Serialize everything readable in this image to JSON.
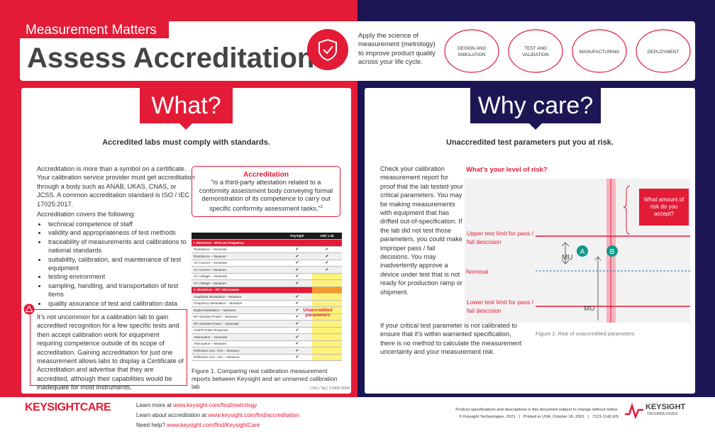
{
  "header": {
    "tag": "Measurement Matters",
    "title": "Assess Accreditation",
    "blurb": "Apply the science of measurement (metrology) to improve product quality across your life cycle.",
    "stages": [
      "DESIGN AND SIMULATION",
      "TEST AND VALIDATION",
      "MANUFACTURING",
      "DEPLOYMENT"
    ]
  },
  "what": {
    "heading": "What?",
    "subheading": "Accredited labs must comply with standards.",
    "intro": "Accreditation is more than a symbol on a certificate. Your calibration service provider must get accreditation through a body such as ANAB, UKAS, CNAS, or JCSS. A common accreditation standard is ISO / IEC 17025:2017.",
    "list_intro": "Accreditation covers the following:",
    "bullets": [
      "technical competence of staff",
      "validity and appropriateness of test methods",
      "traceability of measurements and calibrations to national standards",
      "suitability, calibration, and maintenance of test equipment",
      "testing environment",
      "sampling, handling, and transportation of test items",
      "quality assurance of test and calibration data"
    ],
    "definition": {
      "title": "Accreditation",
      "text": "“is a third-party attestation related to a conformity assessment body conveying formal demonstration of its competence to carry out specific conformity assessment tasks.”",
      "mark": "1"
    },
    "warning": "It’s not uncommon for a calibration lab to gain accredited recognition for a few specific tests and then accept calibration work for equipment requiring competence outside of its scope of accreditation. Gaining accreditation for just one measurement allows labs to display a Certificate of Accreditation and advertise that they are accredited, although their capabilities would be inadequate for most instruments.",
    "table": {
      "columns": [
        "Keysight",
        "ABC Lab"
      ],
      "rows": [
        {
          "section": "I. Electrical – DC/Low Frequency"
        },
        [
          "Resistance – Generate",
          "✔",
          "✔"
        ],
        [
          "Resistance – Measure",
          "✔",
          "✔"
        ],
        [
          "AC Current – Generate",
          "✔",
          "✔"
        ],
        [
          "AC Current – Measure",
          "✔",
          "✔"
        ],
        [
          "AC Voltage – Generate",
          "✔"
        ],
        [
          "AC Voltage – Measure",
          "✔"
        ],
        {
          "section": "II. Electrical – RF / Microwave"
        },
        [
          "Amplitude Modulation – Measure",
          "✔"
        ],
        [
          "Frequency Modulation – Measure",
          "✔"
        ],
        [
          "Digital Modulation – Measure",
          "✔"
        ],
        [
          "RF Absolute Power – Measure",
          "✔"
        ],
        [
          "RF Absolute Power – Generate",
          "✔"
        ],
        [
          "CISPR Pulse Response",
          "✔"
        ],
        [
          "Attenuation – Generate",
          "✔"
        ],
        [
          "Attenuation – Measure",
          "✔"
        ],
        [
          "Reflection S11 / S22 – Measure",
          "✔"
        ],
        [
          "Reflection S12 / S21 – Measure",
          "✔"
        ]
      ],
      "unaccredited": "Unaccredited parameters"
    },
    "caption": "Figure 1. Comparing real calibration measurement reports between Keysight and an unnamed calibration lab",
    "footnote": "¹ ISO / IEC 17000:2004"
  },
  "why": {
    "heading": "Why care?",
    "subheading": "Unaccredited test parameters put you at risk.",
    "body1": "Check your calibration measurement report for proof that the lab tested your critical parameters. You may be making measurements with equipment that has drifted out-of-specification. If the lab did not test those parameters, you could make improper pass / fail decisions. You may inadvertently approve a device under test that is not ready for production ramp or shipment.",
    "body2": "If your critical test parameter is not calibrated to ensure that it’s within warranted specification, there is no method to calculate the measurement uncertainty and your measurement risk.",
    "risk_title": "What’s your level of risk?",
    "figure": {
      "callout": "What amount of risk do you accept?",
      "upper": "Upper test limit for pass / fail descision",
      "nominal": "Nominal",
      "lower": "Lower test limit for pass / fail descision",
      "mu": "MU",
      "a": "A",
      "b": "B",
      "caption": "Figure 2. Risk of unaccredited parameters"
    }
  },
  "footer": {
    "logo": "KEYSIGHTCARE",
    "links": [
      [
        "Learn more at ",
        "www.keysight.com/find/metrology"
      ],
      [
        "Learn about accreditation at ",
        "www.keysight.com/find/accreditation"
      ],
      [
        "Need help? ",
        "www.keysight.com/find/KeysightCare"
      ]
    ],
    "disclaimer": "Product specifications and descriptions in this document subject to change without notice.",
    "copyright": "© Keysight Technologies, 2021   |   Printed in USA, October 18, 2021   |   7121-1142.EN",
    "brand": "KEYSIGHT",
    "brand_sub": "TECHNOLOGIES"
  }
}
